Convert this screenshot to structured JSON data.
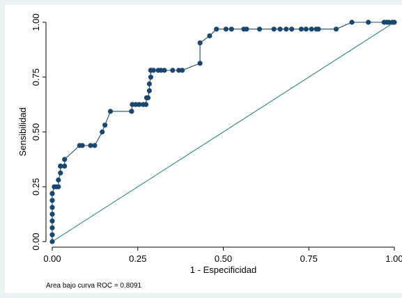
{
  "chart_data": {
    "type": "line",
    "xlabel": "1 - Especificidad",
    "ylabel": "Sensibilidad",
    "xlim": [
      0,
      1
    ],
    "ylim": [
      0,
      1
    ],
    "xticks": [
      "0.00",
      "0.25",
      "0.50",
      "0.75",
      "1.00"
    ],
    "yticks": [
      "0.00",
      "0.25",
      "0.50",
      "0.75",
      "1.00"
    ],
    "note": "Area bajo curva ROC   = 0.8091",
    "grid": false,
    "colors": {
      "roc": "#1a476f",
      "reference": "#2e8b88"
    },
    "series": [
      {
        "x": [
          0,
          0,
          0,
          0,
          0,
          0,
          0,
          0,
          0,
          0,
          0,
          0.006,
          0.012,
          0.018,
          0.018,
          0.024,
          0.024,
          0.024,
          0.024,
          0.036,
          0.036,
          0.08,
          0.088,
          0.112,
          0.124,
          0.146,
          0.154,
          0.17,
          0.232,
          0.234,
          0.244,
          0.254,
          0.266,
          0.274,
          0.276,
          0.28,
          0.284,
          0.284,
          0.288,
          0.288,
          0.288,
          0.288,
          0.288,
          0.296,
          0.31,
          0.318,
          0.328,
          0.352,
          0.37,
          0.38,
          0.432,
          0.432,
          0.46,
          0.48,
          0.508,
          0.524,
          0.56,
          0.568,
          0.606,
          0.648,
          0.666,
          0.684,
          0.7,
          0.728,
          0.742,
          0.758,
          0.772,
          0.778,
          0.83,
          0.876,
          0.924,
          0.97,
          0.978,
          0.984,
          0.994,
          1
        ],
        "y": [
          0,
          0.031,
          0.063,
          0.094,
          0.125,
          0.156,
          0.188,
          0.219,
          0.219,
          0.219,
          0.219,
          0.25,
          0.25,
          0.25,
          0.281,
          0.313,
          0.344,
          0.344,
          0.344,
          0.344,
          0.375,
          0.438,
          0.438,
          0.438,
          0.438,
          0.5,
          0.531,
          0.594,
          0.594,
          0.625,
          0.625,
          0.625,
          0.625,
          0.625,
          0.656,
          0.656,
          0.688,
          0.719,
          0.75,
          0.781,
          0.781,
          0.781,
          0.781,
          0.781,
          0.781,
          0.781,
          0.781,
          0.781,
          0.781,
          0.781,
          0.813,
          0.906,
          0.938,
          0.969,
          0.969,
          0.969,
          0.969,
          0.969,
          0.969,
          0.969,
          0.969,
          0.969,
          0.969,
          0.969,
          0.969,
          0.969,
          0.969,
          0.969,
          0.969,
          1,
          1,
          1,
          1,
          1,
          1,
          1
        ]
      }
    ]
  }
}
